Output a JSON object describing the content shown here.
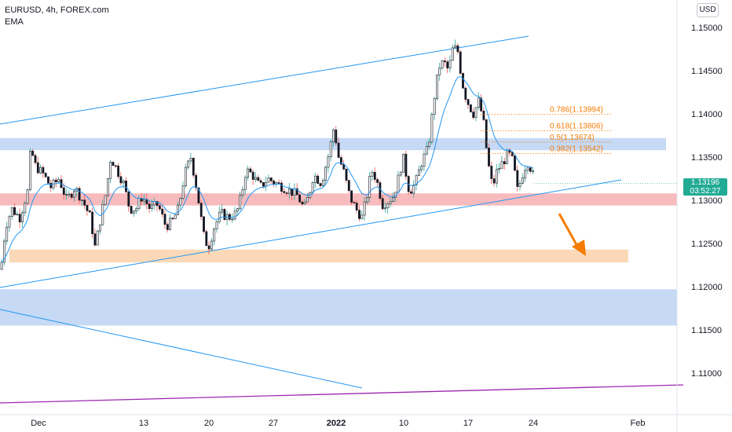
{
  "header": {
    "symbol_line": "EURUSD, 4h, FOREX.com",
    "indicator": "EMA",
    "currency": "USD"
  },
  "price_tag": {
    "price": "1.13196",
    "countdown": "03:52:27"
  },
  "colors": {
    "up": "#26a69a",
    "down": "#ef5350",
    "candle": "#131722",
    "ema": "#2196f3",
    "trendline": "#2196f3",
    "fib": "#f57c00",
    "support_zone": "#f8bbbd",
    "target_zone": "#fbd9b8",
    "resistance_zone": "#c6d9f5",
    "long_line": "#9c27b0",
    "arrow": "#f57c00"
  },
  "chart_data": {
    "type": "candlestick",
    "symbol": "EURUSD",
    "timeframe": "4h",
    "ylim": [
      1.1065,
      1.152
    ],
    "y_ticks": [
      "1.15000",
      "1.14500",
      "1.14000",
      "1.13500",
      "1.13000",
      "1.12500",
      "1.12000",
      "1.11500",
      "1.11000"
    ],
    "x_ticks": [
      {
        "label": "Dec",
        "bold": false
      },
      {
        "label": "13",
        "bold": false
      },
      {
        "label": "20",
        "bold": false
      },
      {
        "label": "27",
        "bold": false
      },
      {
        "label": "2022",
        "bold": true
      },
      {
        "label": "10",
        "bold": false
      },
      {
        "label": "17",
        "bold": false
      },
      {
        "label": "24",
        "bold": false
      },
      {
        "label": "Feb",
        "bold": false
      }
    ],
    "last_price": 1.13196,
    "path": [
      [
        0,
        1.122
      ],
      [
        6,
        1.127
      ],
      [
        14,
        1.129
      ],
      [
        24,
        1.128
      ],
      [
        34,
        1.131
      ],
      [
        38,
        1.136
      ],
      [
        44,
        1.134
      ],
      [
        54,
        1.133
      ],
      [
        64,
        1.1315
      ],
      [
        74,
        1.1325
      ],
      [
        84,
        1.13
      ],
      [
        94,
        1.1315
      ],
      [
        104,
        1.13
      ],
      [
        114,
        1.128
      ],
      [
        120,
        1.1245
      ],
      [
        126,
        1.1275
      ],
      [
        134,
        1.131
      ],
      [
        140,
        1.135
      ],
      [
        148,
        1.1335
      ],
      [
        156,
        1.132
      ],
      [
        164,
        1.129
      ],
      [
        172,
        1.129
      ],
      [
        180,
        1.1305
      ],
      [
        190,
        1.129
      ],
      [
        200,
        1.1295
      ],
      [
        210,
        1.127
      ],
      [
        218,
        1.1275
      ],
      [
        226,
        1.129
      ],
      [
        234,
        1.133
      ],
      [
        242,
        1.135
      ],
      [
        250,
        1.131
      ],
      [
        258,
        1.126
      ],
      [
        264,
        1.1245
      ],
      [
        272,
        1.127
      ],
      [
        280,
        1.1285
      ],
      [
        290,
        1.128
      ],
      [
        300,
        1.1285
      ],
      [
        306,
        1.1305
      ],
      [
        312,
        1.1335
      ],
      [
        320,
        1.133
      ],
      [
        330,
        1.1315
      ],
      [
        340,
        1.1325
      ],
      [
        350,
        1.132
      ],
      [
        360,
        1.1315
      ],
      [
        370,
        1.131
      ],
      [
        378,
        1.1305
      ],
      [
        386,
        1.129
      ],
      [
        392,
        1.1305
      ],
      [
        398,
        1.133
      ],
      [
        408,
        1.132
      ],
      [
        418,
        1.1355
      ],
      [
        424,
        1.1385
      ],
      [
        430,
        1.135
      ],
      [
        436,
        1.1335
      ],
      [
        444,
        1.1305
      ],
      [
        452,
        1.129
      ],
      [
        460,
        1.128
      ],
      [
        466,
        1.1305
      ],
      [
        472,
        1.1335
      ],
      [
        478,
        1.1325
      ],
      [
        486,
        1.1295
      ],
      [
        494,
        1.13
      ],
      [
        500,
        1.1305
      ],
      [
        506,
        1.1325
      ],
      [
        512,
        1.135
      ],
      [
        520,
        1.131
      ],
      [
        528,
        1.132
      ],
      [
        536,
        1.1345
      ],
      [
        544,
        1.136
      ],
      [
        552,
        1.142
      ],
      [
        558,
        1.1455
      ],
      [
        564,
        1.146
      ],
      [
        570,
        1.145
      ],
      [
        576,
        1.1478
      ],
      [
        582,
        1.1472
      ],
      [
        586,
        1.1445
      ],
      [
        590,
        1.1425
      ],
      [
        596,
        1.141
      ],
      [
        602,
        1.14
      ],
      [
        608,
        1.1415
      ],
      [
        614,
        1.1395
      ],
      [
        620,
        1.1345
      ],
      [
        626,
        1.1315
      ],
      [
        632,
        1.1335
      ],
      [
        640,
        1.1345
      ],
      [
        646,
        1.1355
      ],
      [
        652,
        1.1345
      ],
      [
        658,
        1.131
      ],
      [
        664,
        1.133
      ],
      [
        670,
        1.1345
      ],
      [
        676,
        1.1335
      ],
      [
        680,
        1.13196
      ]
    ],
    "support_zone": [
      1.1294,
      1.1308
    ],
    "target_zone": [
      1.1228,
      1.1243
    ],
    "resistance_zones": [
      [
        1.1358,
        1.1372
      ],
      [
        1.1155,
        1.1197
      ]
    ],
    "fib_levels": [
      {
        "label": "0.786(1.13994)",
        "price": 1.13994
      },
      {
        "label": "0.618(1.13806)",
        "price": 1.13806
      },
      {
        "label": "0.5(1.13674)",
        "price": 1.13674
      },
      {
        "label": "0.382(1.13542)",
        "price": 1.13542
      }
    ],
    "grid": false
  }
}
